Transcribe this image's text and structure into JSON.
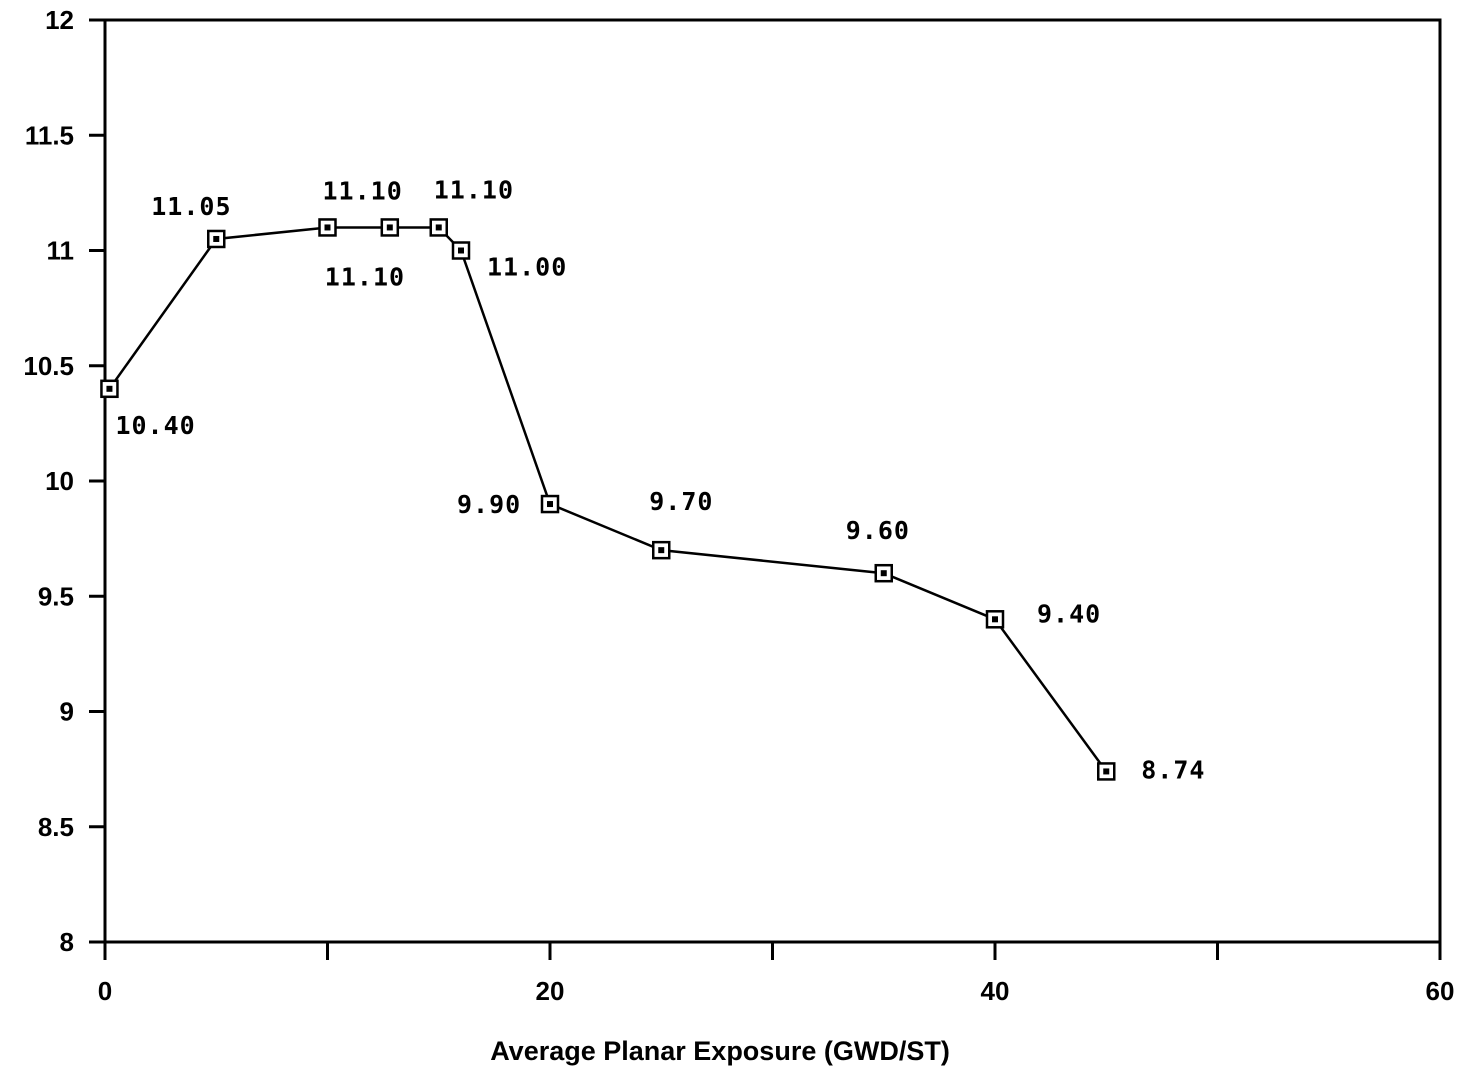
{
  "chart_data": {
    "type": "line",
    "title": "",
    "xlabel": "Average Planar Exposure (GWD/ST)",
    "ylabel": "",
    "xlim": [
      0,
      60
    ],
    "ylim": [
      8,
      12
    ],
    "x_ticks": [
      0,
      10,
      20,
      30,
      40,
      50,
      60
    ],
    "x_tick_labels": [
      "0",
      "",
      "20",
      "",
      "40",
      "",
      "60"
    ],
    "y_ticks": [
      8,
      8.5,
      9,
      9.5,
      10,
      10.5,
      11,
      11.5,
      12
    ],
    "y_tick_labels": [
      "8",
      "8.5",
      "9",
      "9.5",
      "10",
      "10.5",
      "11",
      "11.5",
      "12"
    ],
    "grid": false,
    "marker": "square-with-dot",
    "series": [
      {
        "x": [
          0.2,
          5,
          10,
          12.8,
          15,
          16,
          20,
          25,
          35,
          40,
          45
        ],
        "y": [
          10.4,
          11.05,
          11.1,
          11.1,
          11.1,
          11.0,
          9.9,
          9.7,
          9.6,
          9.4,
          8.74
        ]
      }
    ],
    "data_labels": [
      "10.40",
      "11.05",
      "11.10",
      "11.10",
      "11.10",
      "11.00",
      "9.90",
      "9.70",
      "9.60",
      "9.40",
      "8.74"
    ]
  }
}
